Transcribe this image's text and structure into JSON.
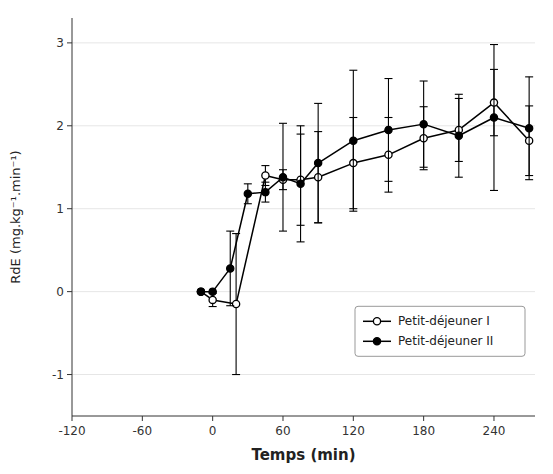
{
  "chart_data": {
    "type": "line",
    "xlabel": "Temps (min)",
    "ylabel": "RdE (mg.kg⁻¹.min⁻¹)",
    "xlim": [
      -120,
      275
    ],
    "ylim": [
      -1.5,
      3.3
    ],
    "xticks": [
      -120,
      -60,
      0,
      60,
      120,
      180,
      240
    ],
    "yticks": [
      -1,
      0,
      1,
      2,
      3
    ],
    "legend": "lower right",
    "series": [
      {
        "name": "Petit-déjeuner I",
        "color": "black",
        "marker": "circle-open",
        "x": [
          -10,
          0,
          20,
          45,
          60,
          75,
          90,
          120,
          150,
          180,
          210,
          240,
          270
        ],
        "values": [
          0.0,
          -0.1,
          -0.15,
          1.4,
          1.35,
          1.35,
          1.38,
          1.55,
          1.65,
          1.85,
          1.95,
          2.28,
          1.82
        ],
        "errors": [
          0.0,
          0.08,
          0.85,
          0.12,
          0.12,
          0.55,
          0.55,
          0.55,
          0.45,
          0.38,
          0.38,
          0.4,
          0.42
        ]
      },
      {
        "name": "Petit-déjeuner II",
        "color": "black",
        "marker": "circle",
        "x": [
          -10,
          0,
          15,
          30,
          45,
          60,
          75,
          90,
          120,
          150,
          180,
          210,
          240,
          270
        ],
        "values": [
          0.0,
          0.0,
          0.28,
          1.18,
          1.2,
          1.38,
          1.3,
          1.55,
          1.82,
          1.95,
          2.02,
          1.88,
          2.1,
          1.97
        ],
        "errors": [
          0.0,
          0.0,
          0.45,
          0.12,
          0.12,
          0.65,
          0.7,
          0.72,
          0.85,
          0.62,
          0.52,
          0.5,
          0.88,
          0.62
        ]
      }
    ]
  }
}
